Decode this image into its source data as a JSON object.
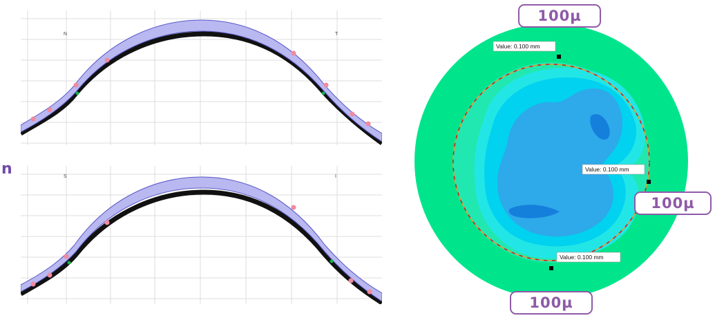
{
  "left_edge_letter": "n",
  "cross_sections": [
    {
      "left_letter": "N",
      "right_letter": "T"
    },
    {
      "left_letter": "S",
      "right_letter": "I"
    }
  ],
  "clearance_badges": {
    "top": "100µ",
    "right": "100µ",
    "bottom": "100µ"
  },
  "map_value_labels": [
    "Value: 0.100 mm",
    "Value: 0.100 mm",
    "Value: 0.100 mm"
  ],
  "colors": {
    "lens_band": "#b9b8f0",
    "lens_band_stroke": "#5a58c8",
    "cornea": "#111111",
    "control_point": "#f08aa0",
    "tangent_point": "#18b04a",
    "grid": "#dcdcdc",
    "map_outer": "#00e58c",
    "map_ring": "#21e8b0",
    "map_zone_1": "#22e6e6",
    "map_zone_2": "#00d2f0",
    "map_zone_3": "#2ea9ea",
    "map_zone_4": "#157fdc",
    "dashed_circle_1": "#d02020",
    "dashed_circle_2": "#e0a030",
    "badge_border": "#8e5aa8"
  },
  "icons": {
    "marker": "square-marker-icon"
  }
}
